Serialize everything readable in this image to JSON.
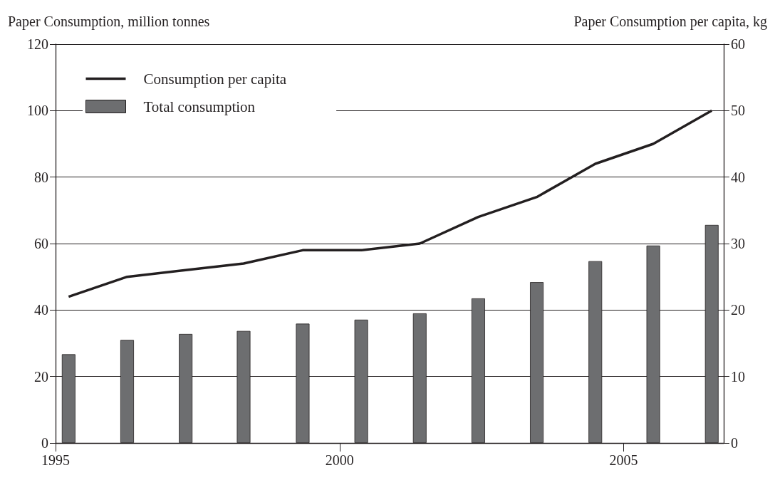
{
  "chart_data": {
    "type": "bar",
    "ylabel": "Paper Consumption, million tonnes",
    "y2label": "Paper Consumption per capita, kg",
    "x": [
      1995.23,
      1996.26,
      1997.29,
      1998.31,
      1999.35,
      2000.38,
      2001.41,
      2002.44,
      2003.47,
      2004.5,
      2005.52,
      2006.55
    ],
    "series": [
      {
        "name": "Consumption per capita",
        "type": "line",
        "axis": "y2",
        "color": "#231f20",
        "values": [
          22,
          25,
          26,
          27,
          29,
          29,
          30,
          34,
          37,
          42,
          45,
          50
        ]
      },
      {
        "name": "Total consumption",
        "color": "#6d6e70",
        "values": [
          26.7,
          31.0,
          32.8,
          33.7,
          35.9,
          37.1,
          39.0,
          43.5,
          48.4,
          54.7,
          59.4,
          65.6
        ]
      }
    ],
    "xlim": [
      1995,
      2006.76
    ],
    "xticks": [
      1995,
      2000,
      2005
    ],
    "ylim": [
      0,
      120
    ],
    "yticks": [
      0,
      20,
      40,
      60,
      80,
      100,
      120
    ],
    "y2lim": [
      0,
      60
    ],
    "y2ticks": [
      0,
      10,
      20,
      30,
      40,
      50,
      60
    ],
    "grid": "y",
    "legend": "top left",
    "marker": "none"
  }
}
